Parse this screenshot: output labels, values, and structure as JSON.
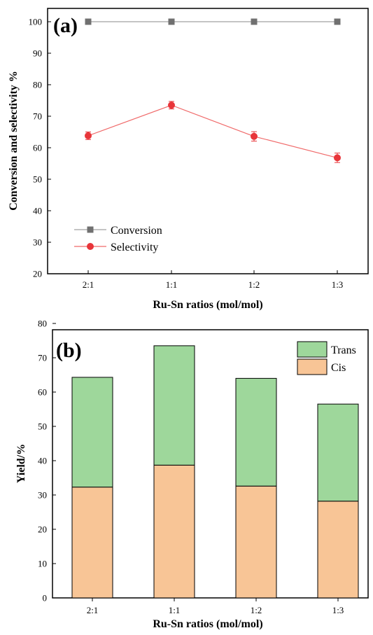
{
  "chart_data": [
    {
      "panel_label": "(a)",
      "type": "line",
      "categories": [
        "2:1",
        "1:1",
        "1:2",
        "1:3"
      ],
      "xlabel": "Ru-Sn ratios (mol/mol)",
      "ylabel": "Conversion and selectivity %",
      "ylim": [
        20,
        100
      ],
      "yticks": [
        20,
        30,
        40,
        50,
        60,
        70,
        80,
        90,
        100
      ],
      "legend_position": "lower-left",
      "series": [
        {
          "name": "Conversion",
          "values": [
            100,
            100,
            100,
            100
          ],
          "marker": "square",
          "color": "#707070",
          "line_color": "#a0a0a0"
        },
        {
          "name": "Selectivity",
          "values": [
            63.8,
            73.5,
            63.6,
            56.8
          ],
          "errors": [
            1.2,
            1.2,
            1.5,
            1.5
          ],
          "marker": "circle",
          "color": "#e8353a",
          "line_color": "#f06a6a"
        }
      ]
    },
    {
      "panel_label": "(b)",
      "type": "bar",
      "stacked": true,
      "categories": [
        "2:1",
        "1:1",
        "1:2",
        "1:3"
      ],
      "xlabel": "Ru-Sn ratios (mol/mol)",
      "ylabel": "Yield/%",
      "ylim": [
        0,
        80
      ],
      "yticks": [
        0,
        10,
        20,
        30,
        40,
        50,
        60,
        70,
        80
      ],
      "legend_position": "top-right",
      "series": [
        {
          "name": "Cis",
          "values": [
            32.3,
            38.7,
            32.6,
            28.2
          ],
          "color": "#f8c596"
        },
        {
          "name": "Trans",
          "values": [
            32.0,
            34.8,
            31.4,
            28.3
          ],
          "color": "#9ed79b"
        }
      ]
    }
  ]
}
